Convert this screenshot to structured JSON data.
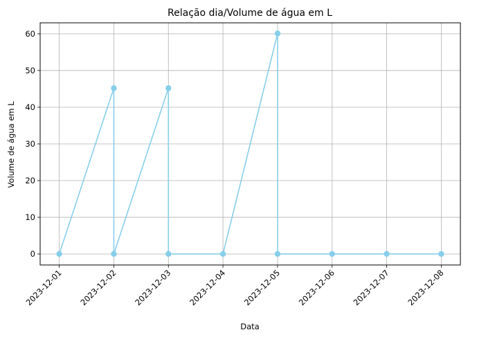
{
  "chart_data": {
    "type": "line",
    "title": "Relação dia/Volume de água em L",
    "xlabel": "Data",
    "ylabel": "Volume de água em L",
    "x_ticks": [
      "2023-12-01",
      "2023-12-02",
      "2023-12-03",
      "2023-12-04",
      "2023-12-05",
      "2023-12-06",
      "2023-12-07",
      "2023-12-08"
    ],
    "y_ticks": [
      0,
      10,
      20,
      30,
      40,
      50,
      60
    ],
    "xlim": [
      "2023-12-00.65",
      "2023-12-08.35"
    ],
    "ylim": [
      -3,
      63
    ],
    "grid": true,
    "legend": "none",
    "line_color": "#87ceeb",
    "series": [
      {
        "points": [
          {
            "x": "2023-12-01",
            "y": 0
          },
          {
            "x": "2023-12-02",
            "y": 45.2
          },
          {
            "x": "2023-12-02",
            "y": 0
          },
          {
            "x": "2023-12-03",
            "y": 45.2
          },
          {
            "x": "2023-12-03",
            "y": 0
          },
          {
            "x": "2023-12-04",
            "y": 0
          },
          {
            "x": "2023-12-05",
            "y": 60.1
          },
          {
            "x": "2023-12-05",
            "y": 0
          },
          {
            "x": "2023-12-06",
            "y": 0
          },
          {
            "x": "2023-12-07",
            "y": 0
          },
          {
            "x": "2023-12-08",
            "y": 0
          }
        ]
      }
    ]
  }
}
